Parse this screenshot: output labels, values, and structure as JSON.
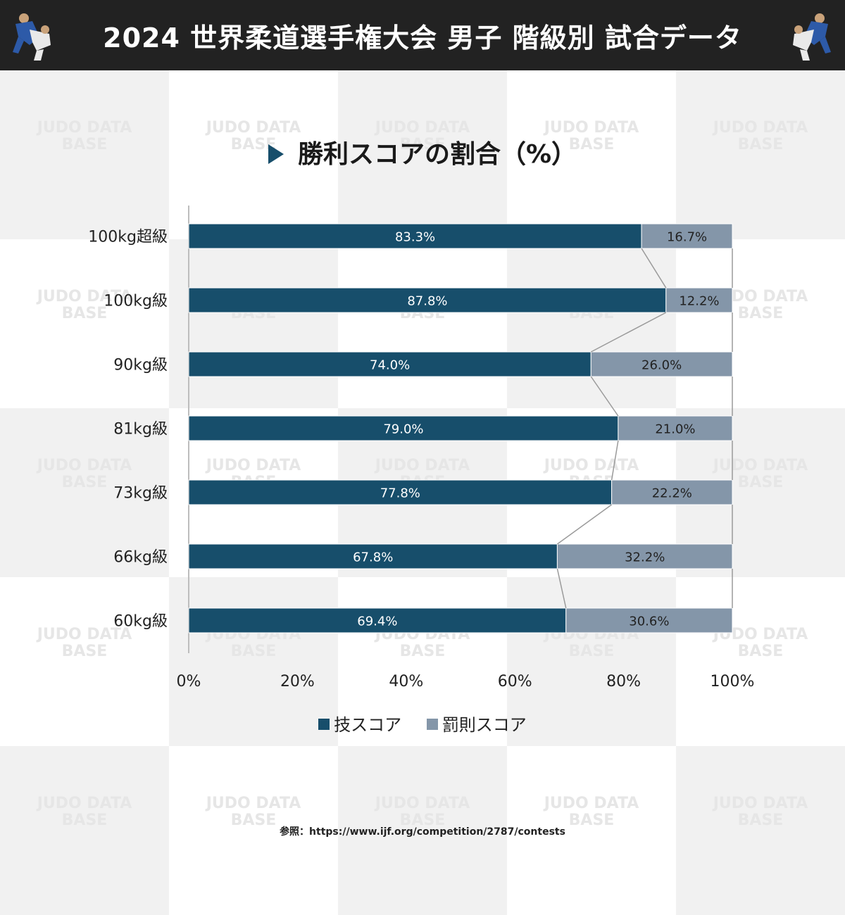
{
  "header": {
    "title": "2024 世界柔道選手権大会 男子 階級別 試合データ"
  },
  "watermark": {
    "text": "JUDO DATA BASE"
  },
  "colors": {
    "waza": "#174e6b",
    "penalty": "#8496a9",
    "header_bg": "#222222"
  },
  "chart_data": {
    "type": "bar",
    "orientation": "horizontal",
    "stacked": true,
    "title": "勝利スコアの割合（%）",
    "categories": [
      "100kg超級",
      "100kg級",
      "90kg級",
      "81kg級",
      "73kg級",
      "66kg級",
      "60kg級"
    ],
    "series": [
      {
        "name": "技スコア",
        "values": [
          83.3,
          87.8,
          74.0,
          79.0,
          77.8,
          67.8,
          69.4
        ]
      },
      {
        "name": "罰則スコア",
        "values": [
          16.7,
          12.2,
          26.0,
          21.0,
          22.2,
          32.2,
          30.6
        ]
      }
    ],
    "data_labels": [
      [
        "83.3%",
        "87.8%",
        "74.0%",
        "79.0%",
        "77.8%",
        "67.8%",
        "69.4%"
      ],
      [
        "16.7%",
        "12.2%",
        "26.0%",
        "21.0%",
        "22.2%",
        "32.2%",
        "30.6%"
      ]
    ],
    "xlim": [
      0,
      100
    ],
    "xticks": [
      "0%",
      "20%",
      "40%",
      "60%",
      "80%",
      "100%"
    ],
    "legend_position": "bottom",
    "series_lines": true
  },
  "source": {
    "text": "参照：https://www.ijf.org/competition/2787/contests"
  }
}
